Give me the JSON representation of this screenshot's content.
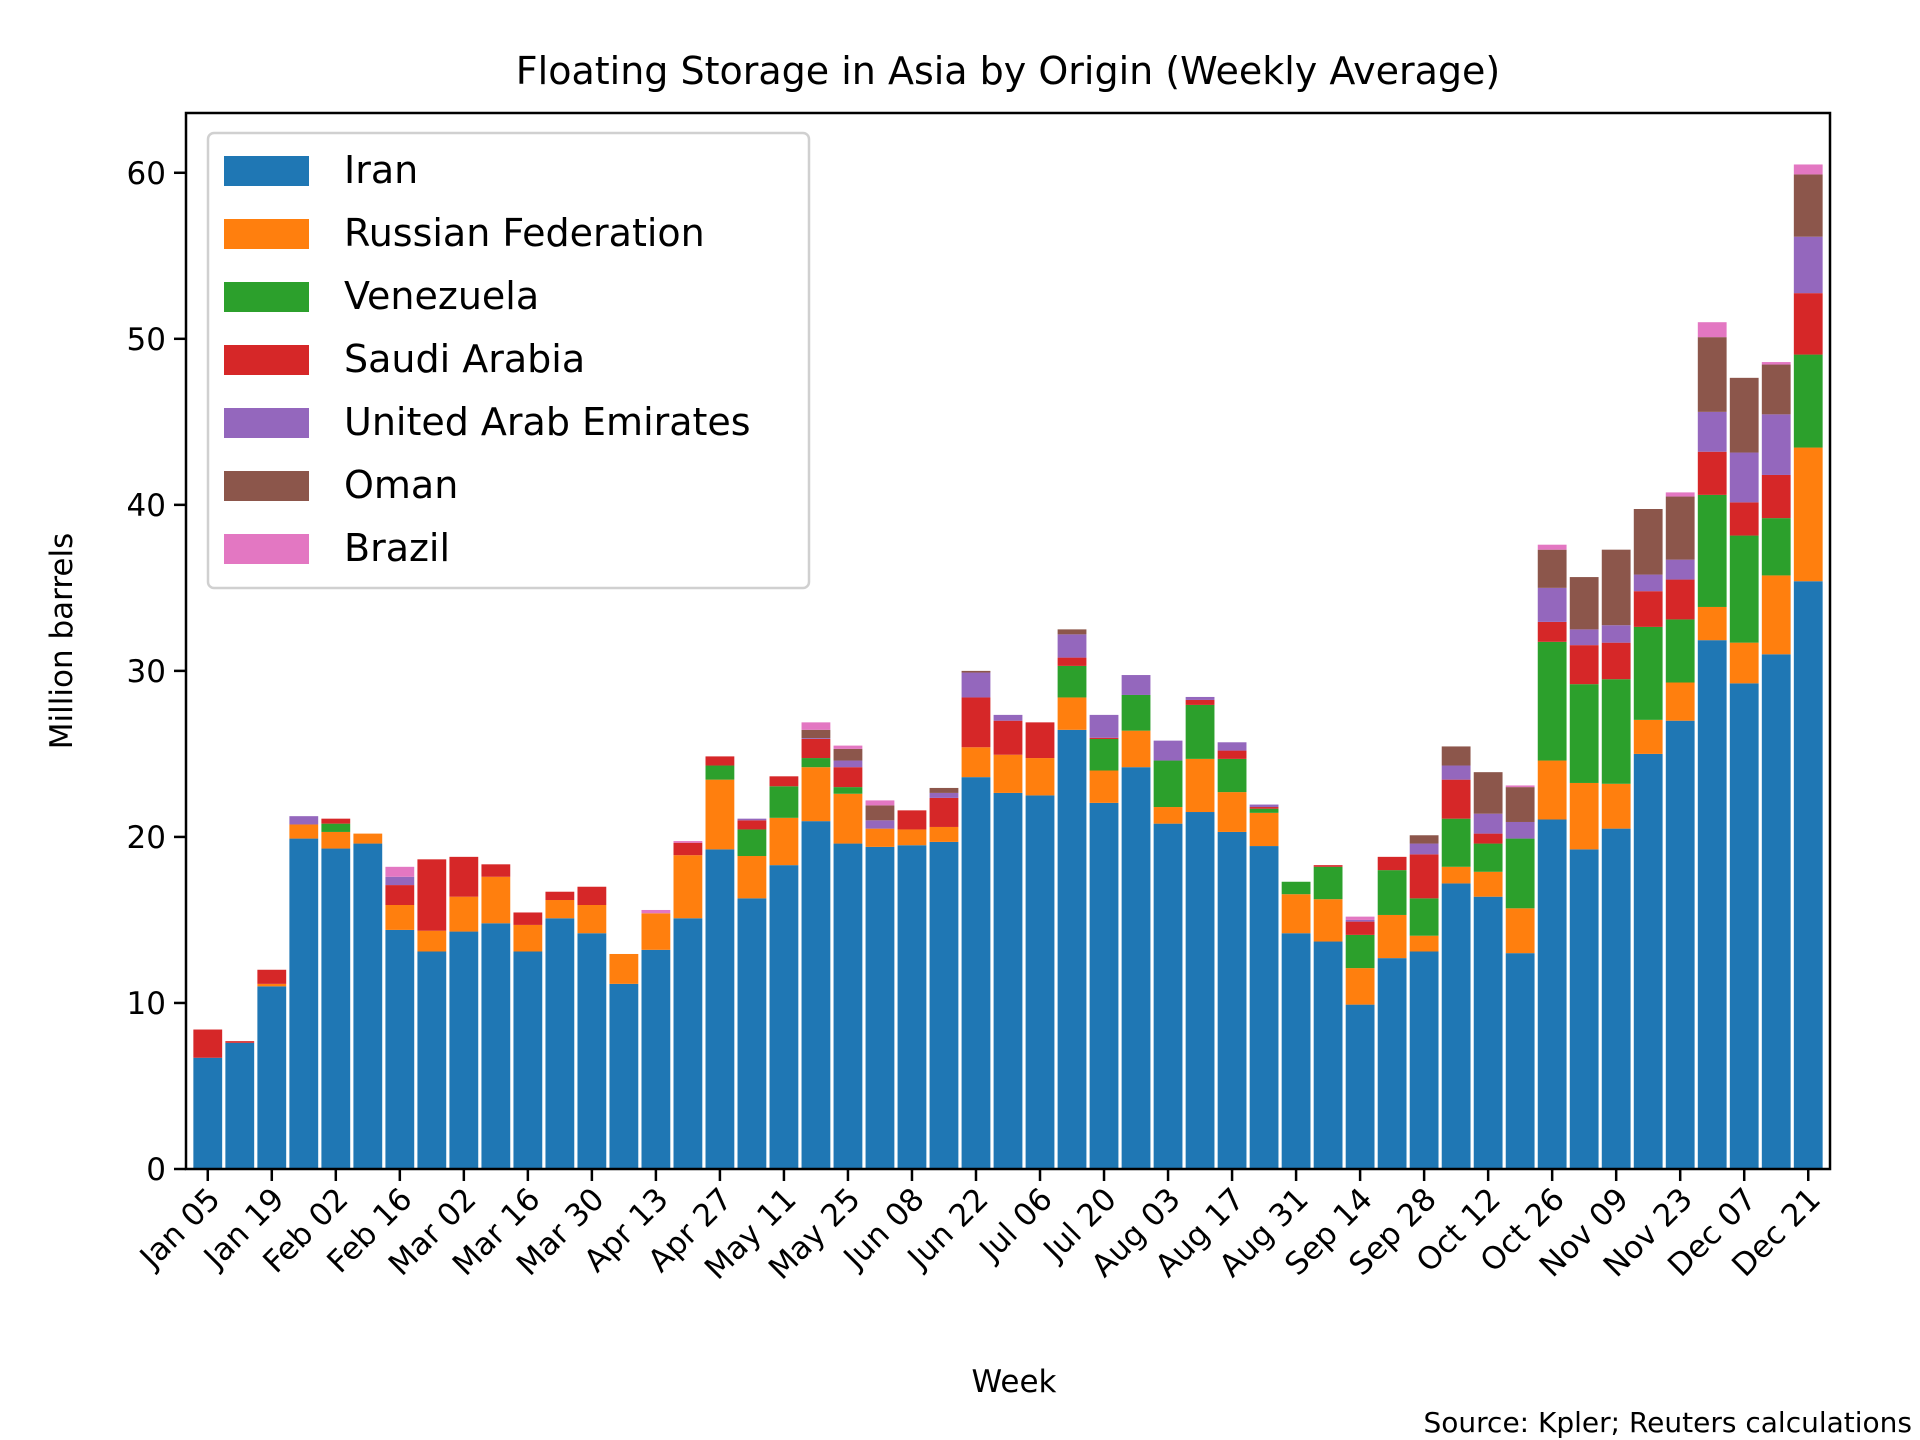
{
  "chart_data": {
    "type": "bar",
    "stacked": true,
    "title": "Floating Storage in Asia by Origin (Weekly Average)",
    "xlabel": "Week",
    "ylabel": "Million barrels",
    "ylim": [
      0,
      63.6
    ],
    "yticks": [
      0,
      10,
      20,
      30,
      40,
      50,
      60
    ],
    "grid": false,
    "legend_position": "top-left",
    "note": "Source: Kpler; Reuters calculations",
    "categories": [
      "Jan 05",
      "Jan 12",
      "Jan 19",
      "Jan 26",
      "Feb 02",
      "Feb 09",
      "Feb 16",
      "Feb 23",
      "Mar 02",
      "Mar 09",
      "Mar 16",
      "Mar 23",
      "Mar 30",
      "Apr 06",
      "Apr 13",
      "Apr 20",
      "Apr 27",
      "May 04",
      "May 11",
      "May 18",
      "May 25",
      "Jun 01",
      "Jun 08",
      "Jun 15",
      "Jun 22",
      "Jun 29",
      "Jul 06",
      "Jul 13",
      "Jul 20",
      "Jul 27",
      "Aug 03",
      "Aug 10",
      "Aug 17",
      "Aug 24",
      "Aug 31",
      "Sep 07",
      "Sep 14",
      "Sep 21",
      "Sep 28",
      "Oct 05",
      "Oct 12",
      "Oct 19",
      "Oct 26",
      "Nov 02",
      "Nov 09",
      "Nov 16",
      "Nov 23",
      "Nov 30",
      "Dec 07",
      "Dec 14",
      "Dec 21"
    ],
    "tick_labels": [
      "Jan 05",
      "Jan 19",
      "Feb 02",
      "Feb 16",
      "Mar 02",
      "Mar 16",
      "Mar 30",
      "Apr 13",
      "Apr 27",
      "May 11",
      "May 25",
      "Jun 08",
      "Jun 22",
      "Jul 06",
      "Jul 20",
      "Aug 03",
      "Aug 17",
      "Aug 31",
      "Sep 14",
      "Sep 28",
      "Oct 12",
      "Oct 26",
      "Nov 09",
      "Nov 23",
      "Dec 07",
      "Dec 21"
    ],
    "series": [
      {
        "name": "Iran",
        "color": "#1f77b4",
        "values": [
          6.7,
          7.6,
          11.0,
          19.9,
          19.3,
          19.6,
          14.4,
          13.1,
          14.3,
          14.8,
          13.1,
          15.1,
          14.2,
          11.15,
          13.2,
          15.1,
          19.25,
          16.3,
          18.3,
          20.95,
          19.6,
          19.4,
          19.5,
          19.7,
          23.6,
          22.65,
          22.5,
          26.45,
          22.05,
          24.2,
          20.8,
          21.5,
          20.3,
          19.45,
          14.2,
          13.7,
          9.9,
          12.7,
          13.1,
          17.2,
          16.4,
          13.0,
          21.05,
          19.25,
          20.5,
          25.0,
          27.0,
          31.85,
          29.25,
          31.0,
          35.4
        ]
      },
      {
        "name": "Russian Federation",
        "color": "#ff7f0e",
        "values": [
          0,
          0,
          0.15,
          0.85,
          1.0,
          0.6,
          1.5,
          1.25,
          2.1,
          2.8,
          1.6,
          1.1,
          1.7,
          1.8,
          2.2,
          3.8,
          4.2,
          2.55,
          2.85,
          3.25,
          3.0,
          1.1,
          0.95,
          0.9,
          1.8,
          2.3,
          2.25,
          1.95,
          1.95,
          2.2,
          1.0,
          3.2,
          2.4,
          2.0,
          2.35,
          2.55,
          2.2,
          2.6,
          0.95,
          1.0,
          1.5,
          2.7,
          3.55,
          4.0,
          2.7,
          2.05,
          2.3,
          2.0,
          2.45,
          4.75,
          8.05
        ]
      },
      {
        "name": "Venezuela",
        "color": "#2ca02c",
        "values": [
          0,
          0,
          0,
          0,
          0.5,
          0,
          0,
          0,
          0,
          0,
          0,
          0,
          0,
          0,
          0,
          0,
          0.85,
          1.6,
          1.9,
          0.55,
          0.4,
          0,
          0,
          0,
          0,
          0,
          0,
          1.9,
          1.9,
          2.15,
          2.8,
          3.25,
          2.0,
          0.25,
          0.75,
          1.95,
          2.0,
          2.7,
          2.25,
          2.9,
          1.7,
          4.2,
          7.15,
          5.95,
          6.3,
          5.6,
          3.8,
          6.75,
          6.45,
          3.45,
          5.6
        ]
      },
      {
        "name": "Saudi Arabia",
        "color": "#d62728",
        "values": [
          1.7,
          0.1,
          0.85,
          0,
          0.3,
          0,
          1.2,
          4.3,
          2.4,
          0.75,
          0.75,
          0.5,
          1.1,
          0,
          0,
          0.75,
          0.55,
          0.55,
          0.6,
          1.15,
          1.2,
          0,
          1.15,
          1.75,
          3.0,
          2.05,
          2.15,
          0.5,
          0.07,
          0,
          0,
          0.3,
          0.5,
          0.1,
          0,
          0.1,
          0.8,
          0.8,
          2.65,
          2.35,
          0.6,
          0,
          1.2,
          2.35,
          2.2,
          2.15,
          2.4,
          2.6,
          2.0,
          2.6,
          3.7
        ]
      },
      {
        "name": "United Arab Emirates",
        "color": "#9467bd",
        "values": [
          0,
          0,
          0,
          0.5,
          0,
          0,
          0.5,
          0,
          0,
          0,
          0,
          0,
          0,
          0,
          0,
          0,
          0,
          0.1,
          0,
          0.05,
          0.4,
          0.5,
          0,
          0.3,
          1.5,
          0.35,
          0,
          1.4,
          1.38,
          1.2,
          1.2,
          0.18,
          0.5,
          0.15,
          0,
          0,
          0.1,
          0,
          0.65,
          0.85,
          1.2,
          1.0,
          2.05,
          0.95,
          1.05,
          1.0,
          1.2,
          2.4,
          3.0,
          3.65,
          3.4
        ]
      },
      {
        "name": "Oman",
        "color": "#8c564b",
        "values": [
          0,
          0,
          0,
          0,
          0,
          0,
          0,
          0,
          0,
          0,
          0,
          0,
          0,
          0,
          0,
          0,
          0,
          0,
          0,
          0.5,
          0.7,
          0.9,
          0,
          0.3,
          0.1,
          0,
          0,
          0.3,
          0,
          0,
          0,
          0,
          0,
          0,
          0,
          0,
          0,
          0,
          0.5,
          1.15,
          2.5,
          2.1,
          2.3,
          3.15,
          4.55,
          3.95,
          3.8,
          4.5,
          4.5,
          3.0,
          3.75
        ]
      },
      {
        "name": "Brazil",
        "color": "#e377c2",
        "values": [
          0,
          0,
          0,
          0,
          0,
          0,
          0.6,
          0,
          0,
          0,
          0,
          0,
          0,
          0,
          0.2,
          0.1,
          0,
          0,
          0,
          0.45,
          0.2,
          0.3,
          0,
          0,
          0,
          0,
          0,
          0,
          0,
          0,
          0,
          0,
          0,
          0,
          0,
          0,
          0.2,
          0,
          0,
          0,
          0,
          0.1,
          0.3,
          0,
          0,
          0,
          0.25,
          0.9,
          0,
          0.15,
          0.6
        ]
      }
    ]
  }
}
